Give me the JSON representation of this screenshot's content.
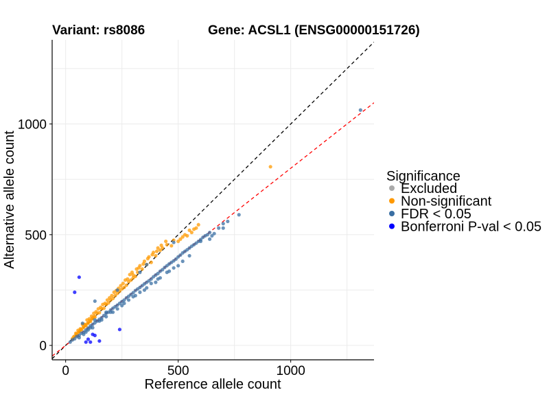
{
  "chart_data": {
    "type": "scatter",
    "title_left": "Variant: rs8086",
    "title_right": "Gene: ACSL1 (ENSG00000151726)",
    "xlabel": "Reference allele count",
    "ylabel": "Alternative allele count",
    "xlim": [
      -60,
      1370
    ],
    "ylim": [
      -65,
      1380
    ],
    "x_ticks": [
      0,
      500,
      1000
    ],
    "y_ticks": [
      0,
      500,
      1000
    ],
    "x_tick_labels": [
      "0",
      "500",
      "1000"
    ],
    "y_tick_labels": [
      "0",
      "500",
      "1000"
    ],
    "grid": true,
    "legend_title": "Significance",
    "legend_position": "right",
    "reference_lines": [
      {
        "name": "identity",
        "slope": 1.0,
        "intercept": 0,
        "color": "#000000",
        "style": "dashed"
      },
      {
        "name": "fitted-ratio",
        "slope": 0.8,
        "intercept": 0,
        "color": "#ff0000",
        "style": "dashed"
      }
    ],
    "series": [
      {
        "name": "Excluded",
        "color": "#aaaaaa",
        "points": []
      },
      {
        "name": "Non-significant",
        "color": "#ff9900",
        "points": [
          [
            30,
            30
          ],
          [
            40,
            42
          ],
          [
            50,
            48
          ],
          [
            60,
            62
          ],
          [
            70,
            70
          ],
          [
            80,
            85
          ],
          [
            90,
            88
          ],
          [
            100,
            102
          ],
          [
            110,
            108
          ],
          [
            120,
            125
          ],
          [
            130,
            128
          ],
          [
            140,
            145
          ],
          [
            150,
            148
          ],
          [
            160,
            165
          ],
          [
            170,
            168
          ],
          [
            180,
            185
          ],
          [
            190,
            192
          ],
          [
            200,
            205
          ],
          [
            210,
            212
          ],
          [
            220,
            225
          ],
          [
            230,
            235
          ],
          [
            240,
            245
          ],
          [
            250,
            255
          ],
          [
            260,
            262
          ],
          [
            270,
            272
          ],
          [
            280,
            288
          ],
          [
            290,
            295
          ],
          [
            300,
            305
          ],
          [
            310,
            312
          ],
          [
            320,
            330
          ],
          [
            340,
            345
          ],
          [
            360,
            365
          ],
          [
            380,
            375
          ],
          [
            400,
            405
          ],
          [
            420,
            430
          ],
          [
            450,
            455
          ],
          [
            480,
            475
          ],
          [
            500,
            470
          ],
          [
            520,
            490
          ],
          [
            540,
            495
          ],
          [
            560,
            510
          ],
          [
            580,
            530
          ],
          [
            910,
            807
          ],
          [
            75,
            95
          ],
          [
            95,
            115
          ],
          [
            105,
            120
          ],
          [
            125,
            145
          ],
          [
            145,
            165
          ],
          [
            165,
            185
          ],
          [
            185,
            205
          ],
          [
            205,
            225
          ],
          [
            215,
            240
          ],
          [
            235,
            258
          ],
          [
            255,
            280
          ],
          [
            265,
            295
          ],
          [
            285,
            320
          ],
          [
            295,
            330
          ],
          [
            315,
            345
          ],
          [
            330,
            360
          ],
          [
            350,
            380
          ],
          [
            370,
            400
          ],
          [
            390,
            420
          ],
          [
            410,
            440
          ],
          [
            430,
            440
          ],
          [
            470,
            450
          ],
          [
            45,
            55
          ],
          [
            55,
            68
          ],
          [
            65,
            75
          ],
          [
            85,
            95
          ],
          [
            115,
            132
          ],
          [
            135,
            152
          ],
          [
            155,
            172
          ],
          [
            175,
            190
          ],
          [
            195,
            215
          ],
          [
            225,
            248
          ],
          [
            245,
            270
          ],
          [
            275,
            300
          ],
          [
            300,
            318
          ],
          [
            325,
            350
          ],
          [
            345,
            368
          ],
          [
            365,
            392
          ],
          [
            385,
            410
          ],
          [
            405,
            425
          ],
          [
            425,
            452
          ],
          [
            445,
            470
          ],
          [
            510,
            480
          ],
          [
            530,
            500
          ],
          [
            550,
            520
          ],
          [
            570,
            525
          ],
          [
            590,
            545
          ],
          [
            35,
            38
          ],
          [
            48,
            52
          ],
          [
            58,
            60
          ],
          [
            68,
            72
          ],
          [
            78,
            80
          ],
          [
            88,
            92
          ],
          [
            98,
            100
          ],
          [
            108,
            112
          ],
          [
            118,
            120
          ],
          [
            128,
            132
          ]
        ]
      },
      {
        "name": "FDR < 0.05",
        "color": "#3a6fa3",
        "points": [
          [
            20,
            15
          ],
          [
            40,
            30
          ],
          [
            60,
            45
          ],
          [
            80,
            60
          ],
          [
            100,
            78
          ],
          [
            120,
            95
          ],
          [
            140,
            110
          ],
          [
            160,
            125
          ],
          [
            180,
            145
          ],
          [
            200,
            160
          ],
          [
            220,
            175
          ],
          [
            240,
            190
          ],
          [
            260,
            205
          ],
          [
            280,
            222
          ],
          [
            300,
            238
          ],
          [
            320,
            255
          ],
          [
            340,
            270
          ],
          [
            360,
            285
          ],
          [
            380,
            300
          ],
          [
            400,
            318
          ],
          [
            420,
            335
          ],
          [
            440,
            352
          ],
          [
            460,
            368
          ],
          [
            480,
            382
          ],
          [
            500,
            400
          ],
          [
            520,
            418
          ],
          [
            540,
            432
          ],
          [
            560,
            448
          ],
          [
            580,
            462
          ],
          [
            600,
            478
          ],
          [
            620,
            495
          ],
          [
            640,
            510
          ],
          [
            660,
            505
          ],
          [
            680,
            530
          ],
          [
            700,
            550
          ],
          [
            720,
            560
          ],
          [
            770,
            590
          ],
          [
            1310,
            1063
          ],
          [
            30,
            25
          ],
          [
            50,
            40
          ],
          [
            70,
            55
          ],
          [
            90,
            70
          ],
          [
            110,
            88
          ],
          [
            130,
            102
          ],
          [
            150,
            118
          ],
          [
            170,
            135
          ],
          [
            190,
            150
          ],
          [
            210,
            168
          ],
          [
            230,
            182
          ],
          [
            250,
            198
          ],
          [
            270,
            215
          ],
          [
            290,
            230
          ],
          [
            310,
            248
          ],
          [
            330,
            262
          ],
          [
            350,
            278
          ],
          [
            370,
            292
          ],
          [
            390,
            310
          ],
          [
            410,
            325
          ],
          [
            430,
            342
          ],
          [
            450,
            360
          ],
          [
            470,
            375
          ],
          [
            490,
            390
          ],
          [
            510,
            408
          ],
          [
            530,
            425
          ],
          [
            550,
            440
          ],
          [
            570,
            455
          ],
          [
            590,
            470
          ],
          [
            610,
            488
          ],
          [
            630,
            500
          ],
          [
            650,
            495
          ],
          [
            400,
            285
          ],
          [
            450,
            330
          ],
          [
            500,
            360
          ],
          [
            550,
            405
          ],
          [
            300,
            220
          ],
          [
            250,
            180
          ],
          [
            200,
            150
          ],
          [
            150,
            110
          ],
          [
            100,
            70
          ],
          [
            350,
            250
          ],
          [
            420,
            305
          ],
          [
            480,
            350
          ],
          [
            520,
            380
          ],
          [
            600,
            470
          ],
          [
            640,
            480
          ],
          [
            700,
            530
          ],
          [
            60,
            35
          ],
          [
            110,
            80
          ],
          [
            160,
            115
          ],
          [
            210,
            150
          ],
          [
            260,
            190
          ],
          [
            310,
            225
          ],
          [
            360,
            260
          ],
          [
            410,
            300
          ],
          [
            460,
            335
          ],
          [
            330,
            240
          ],
          [
            380,
            280
          ],
          [
            280,
            205
          ],
          [
            230,
            165
          ],
          [
            180,
            130
          ],
          [
            120,
            80
          ],
          [
            80,
            50
          ],
          [
            130,
            200
          ],
          [
            75,
            100
          ],
          [
            90,
            60
          ],
          [
            130,
            115
          ],
          [
            180,
            150
          ],
          [
            330,
            330
          ],
          [
            360,
            365
          ],
          [
            480,
            465
          ],
          [
            230,
            250
          ]
        ]
      },
      {
        "name": "Bonferroni P-val < 0.05",
        "color": "#0000ff",
        "points": [
          [
            60,
            308
          ],
          [
            40,
            240
          ],
          [
            240,
            72
          ],
          [
            130,
            45
          ],
          [
            100,
            28
          ],
          [
            90,
            15
          ],
          [
            110,
            15
          ],
          [
            120,
            50
          ],
          [
            150,
            20
          ]
        ]
      }
    ]
  }
}
